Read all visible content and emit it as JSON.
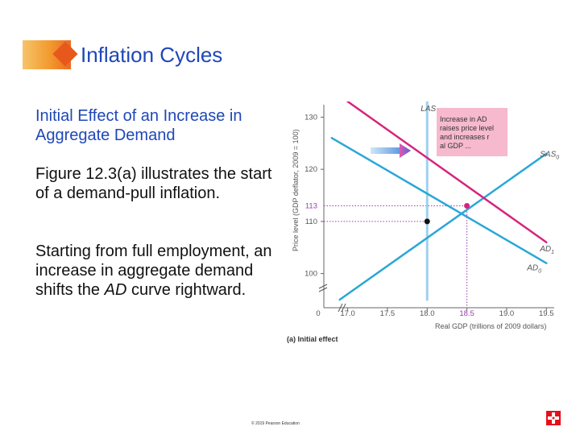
{
  "slide": {
    "title": "Inflation Cycles",
    "subtitle": "Initial Effect of an Increase in Aggregate Demand",
    "para1": "Figure 12.3(a) illustrates the start of a demand-pull inflation.",
    "para2_before": "Starting from full employment, an increase in aggregate demand shifts the ",
    "para2_italic": "AD",
    "para2_after": " curve rightward.",
    "copyright": "© 2019 Pearson Education"
  },
  "colors": {
    "title": "#1f47b8",
    "las": "#9fd0ee",
    "sas": "#2aa7d8",
    "ad": "#2aa7d8",
    "ad1": "#d6247c",
    "guide": "#9b3bb3",
    "annotation_box": "#f6b9cd",
    "accent": "#e4111b"
  },
  "chart_data": {
    "type": "line",
    "ylabel": "Price level (GDP deflator, 2009 = 100)",
    "xlabel": "Real GDP (trillions of 2009 dollars)",
    "caption": "(a) Initial effect",
    "xlim": [
      16.7,
      19.7
    ],
    "ylim": [
      95,
      133
    ],
    "x_ticks": [
      "0",
      "17.0",
      "17.5",
      "18.0",
      "18.5",
      "19.0",
      "19.5"
    ],
    "x_tick_values": [
      null,
      17.0,
      17.5,
      18.0,
      18.5,
      19.0,
      19.5
    ],
    "y_ticks": [
      "100",
      "110",
      "120",
      "130"
    ],
    "y_tick_values": [
      100,
      110,
      120,
      130
    ],
    "highlight_x_tick": "18.5",
    "highlight_y_tick": "113",
    "series": [
      {
        "name": "LAS",
        "points": [
          [
            18.0,
            133
          ],
          [
            18.0,
            95
          ]
        ]
      },
      {
        "name": "SAS0",
        "points": [
          [
            16.9,
            95
          ],
          [
            19.5,
            123
          ]
        ]
      },
      {
        "name": "AD0",
        "points": [
          [
            16.8,
            126
          ],
          [
            19.5,
            102
          ]
        ]
      },
      {
        "name": "AD1",
        "points": [
          [
            17.0,
            133
          ],
          [
            19.5,
            106
          ]
        ]
      }
    ],
    "equilibria": [
      {
        "x": 18.0,
        "y": 110
      },
      {
        "x": 18.5,
        "y": 113
      }
    ],
    "annotation": "Increase in AD raises price level and increases real GDP ..."
  }
}
